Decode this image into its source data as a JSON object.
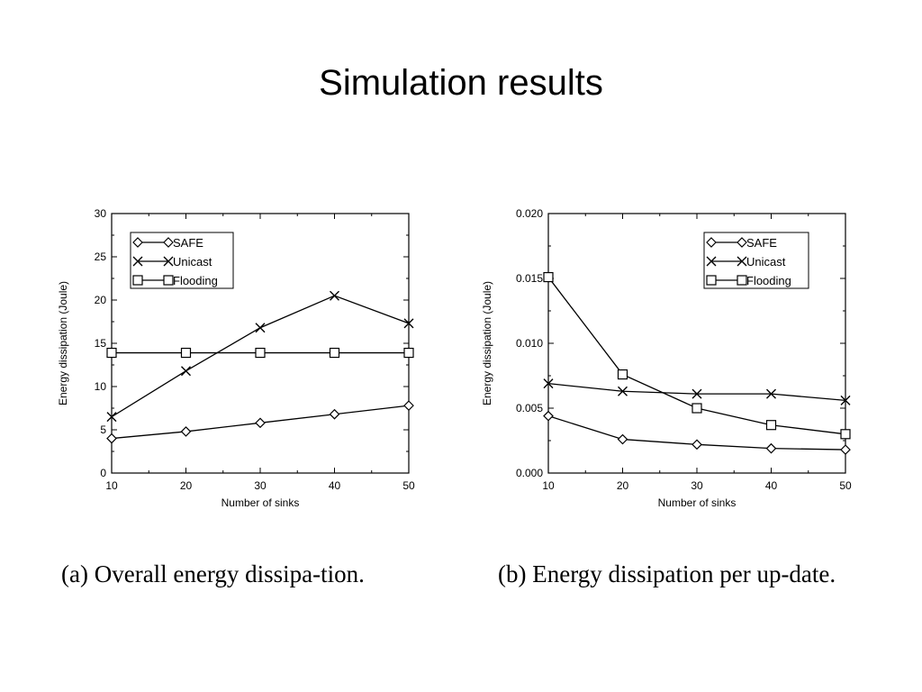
{
  "title": "Simulation results",
  "captions": {
    "a": "(a)  Overall  energy  dissipa-tion.",
    "b": "(b) Energy dissipation per up-date."
  },
  "chart_data": [
    {
      "type": "line",
      "xlabel": "Number of sinks",
      "ylabel": "Energy dissipation (Joule)",
      "xlim": [
        10,
        50
      ],
      "ylim": [
        0,
        30
      ],
      "xticks": [
        "10",
        "20",
        "30",
        "40",
        "50"
      ],
      "yticks": [
        "0",
        "5",
        "10",
        "15",
        "20",
        "25",
        "30"
      ],
      "grid": false,
      "legend_position": "top-left",
      "x": [
        10,
        20,
        30,
        40,
        50
      ],
      "series": [
        {
          "name": "SAFE",
          "marker": "diamond",
          "values": [
            4.0,
            4.8,
            5.8,
            6.8,
            7.8
          ]
        },
        {
          "name": "Unicast",
          "marker": "x",
          "values": [
            6.5,
            11.8,
            16.8,
            20.5,
            17.3
          ]
        },
        {
          "name": "Flooding",
          "marker": "square",
          "values": [
            13.9,
            13.9,
            13.9,
            13.9,
            13.9
          ]
        }
      ]
    },
    {
      "type": "line",
      "xlabel": "Number of sinks",
      "ylabel": "Energy dissipation (Joule)",
      "xlim": [
        10,
        50
      ],
      "ylim": [
        0,
        0.02
      ],
      "xticks": [
        "10",
        "20",
        "30",
        "40",
        "50"
      ],
      "yticks": [
        "0.000",
        "0.005",
        "0.010",
        "0.015",
        "0.020"
      ],
      "grid": false,
      "legend_position": "top-right",
      "x": [
        10,
        20,
        30,
        40,
        50
      ],
      "series": [
        {
          "name": "SAFE",
          "marker": "diamond",
          "values": [
            0.0044,
            0.0026,
            0.0022,
            0.0019,
            0.0018
          ]
        },
        {
          "name": "Unicast",
          "marker": "x",
          "values": [
            0.0069,
            0.0063,
            0.0061,
            0.0061,
            0.0056
          ]
        },
        {
          "name": "Flooding",
          "marker": "square",
          "values": [
            0.0151,
            0.0076,
            0.005,
            0.0037,
            0.003
          ]
        }
      ]
    }
  ]
}
